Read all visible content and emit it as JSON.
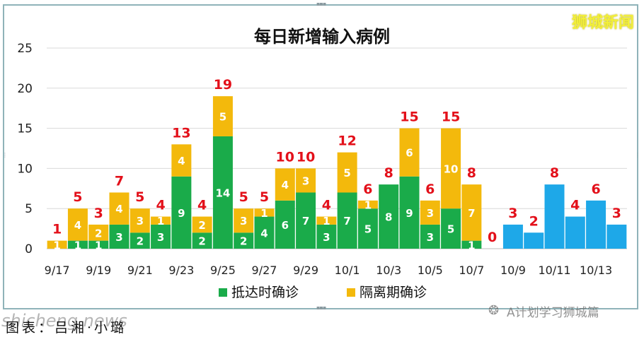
{
  "brand": "狮城新闻",
  "caption": "图表：吕湘·小璐",
  "watermarks": {
    "site": "shicheng.news",
    "account": "A计划学习狮城篇"
  },
  "colors": {
    "arrival": "#1aab4a",
    "quarantine": "#f3b90c",
    "community": "#1ea8e8",
    "total_label": "#e3101a",
    "segment_label": "#ffffff"
  },
  "chart_data": {
    "type": "bar",
    "stacked": true,
    "title": "每日新增输入病例",
    "xlabel": "",
    "ylabel": "",
    "ylim": [
      0,
      25
    ],
    "yticks": [
      0,
      5,
      10,
      15,
      20,
      25
    ],
    "grid": true,
    "legend": "bottom",
    "categories": [
      "9/17",
      "9/18",
      "9/19",
      "9/20",
      "9/21",
      "9/22",
      "9/23",
      "9/24",
      "9/25",
      "9/26",
      "9/27",
      "9/28",
      "9/29",
      "9/30",
      "10/1",
      "10/2",
      "10/3",
      "10/4",
      "10/5",
      "10/6",
      "10/7",
      "10/8",
      "10/9",
      "10/10",
      "10/11",
      "10/12",
      "10/13",
      "10/14"
    ],
    "x_tick_labels": [
      "9/17",
      "9/19",
      "9/21",
      "9/23",
      "9/25",
      "9/27",
      "9/29",
      "10/1",
      "10/3",
      "10/5",
      "10/7",
      "10/9",
      "10/11",
      "10/13"
    ],
    "series": [
      {
        "name": "抵达时确诊",
        "color": "#1aab4a",
        "values": [
          0,
          1,
          1,
          3,
          2,
          3,
          9,
          2,
          14,
          2,
          4,
          6,
          7,
          3,
          7,
          5,
          8,
          9,
          3,
          5,
          1,
          null,
          null,
          null,
          null,
          null,
          null,
          null
        ]
      },
      {
        "name": "隔离期确诊",
        "color": "#f3b90c",
        "values": [
          1,
          4,
          2,
          4,
          3,
          1,
          4,
          2,
          5,
          3,
          1,
          4,
          3,
          1,
          5,
          1,
          0,
          6,
          3,
          10,
          7,
          null,
          null,
          null,
          null,
          null,
          null,
          null
        ]
      },
      {
        "color": "#1ea8e8",
        "values": [
          null,
          null,
          null,
          null,
          null,
          null,
          null,
          null,
          null,
          null,
          null,
          null,
          null,
          null,
          null,
          null,
          null,
          null,
          null,
          null,
          null,
          0,
          3,
          2,
          8,
          4,
          6,
          3
        ]
      }
    ],
    "segment_labels": {
      "green": [
        "",
        "1",
        "1",
        "3",
        "2",
        "3",
        "9",
        "2",
        "14",
        "2",
        "4",
        "6",
        "7",
        "3",
        "7",
        "5",
        "8",
        "9",
        "3",
        "5",
        "1",
        "",
        "",
        "",
        "",
        "",
        "",
        ""
      ],
      "yellow": [
        "1",
        "4",
        "2",
        "4",
        "3",
        "1",
        "4",
        "2",
        "5",
        "3",
        "1",
        "4",
        "3",
        "1",
        "5",
        "1",
        "",
        "6",
        "3",
        "10",
        "7",
        "",
        "",
        "",
        "",
        "",
        "",
        ""
      ]
    },
    "totals": [
      1,
      5,
      3,
      7,
      5,
      4,
      13,
      4,
      19,
      5,
      5,
      10,
      10,
      4,
      12,
      6,
      8,
      15,
      6,
      15,
      8,
      0,
      3,
      2,
      8,
      4,
      6,
      3
    ]
  }
}
